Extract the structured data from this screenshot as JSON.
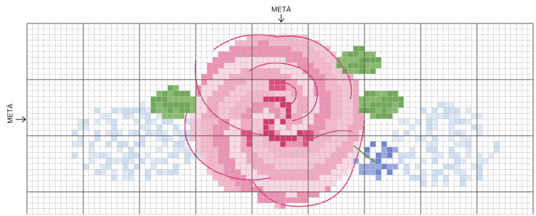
{
  "labels": {
    "top": "METÁ",
    "left": "METÁ"
  }
}
